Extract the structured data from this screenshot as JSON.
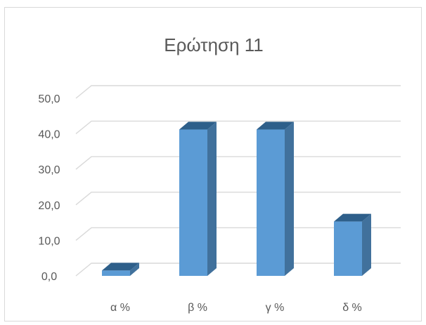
{
  "chart_data": {
    "type": "bar",
    "title": "Ερώτηση 11",
    "categories": [
      "α %",
      "β %",
      "γ %",
      "δ %"
    ],
    "values": [
      1.5,
      41.2,
      41.2,
      15.3
    ],
    "xlabel": "",
    "ylabel": "",
    "ylim": [
      0,
      50
    ],
    "y_ticks": [
      "0,0",
      "10,0",
      "20,0",
      "30,0",
      "40,0",
      "50,0"
    ],
    "grid": true,
    "legend": "none",
    "style": "3d-column",
    "colors": {
      "bar_front": "#5b9bd5",
      "bar_side": "#41719c",
      "bar_top": "#2e5f8a",
      "grid": "#d9d9d9",
      "text": "#595959"
    }
  }
}
